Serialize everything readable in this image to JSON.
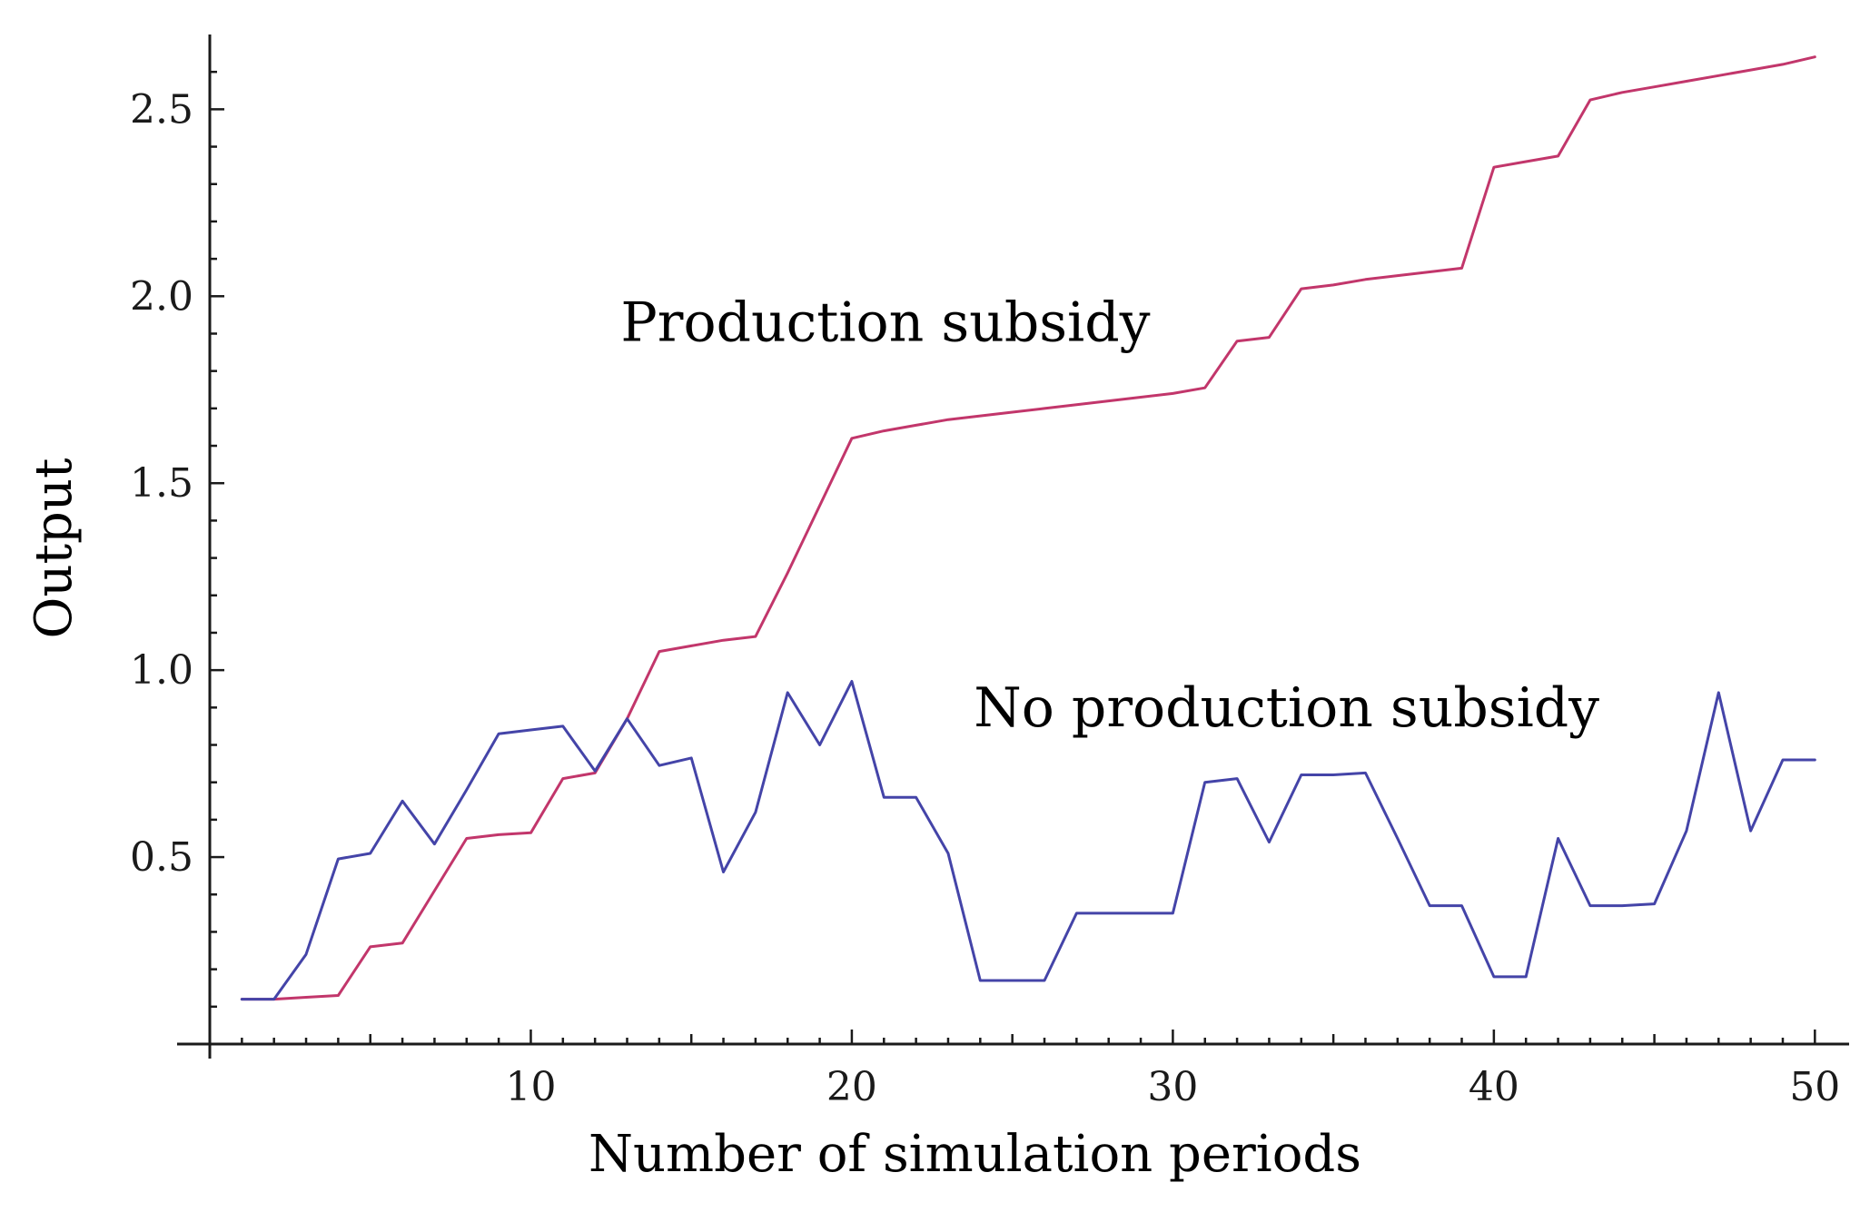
{
  "chart_data": {
    "type": "line",
    "title": "",
    "xlabel": "Number of simulation periods",
    "ylabel": "Output",
    "xlim": [
      0,
      50.5
    ],
    "ylim": [
      0,
      2.7
    ],
    "xticks": [
      10,
      20,
      30,
      40,
      50
    ],
    "xtick_labels": [
      "10",
      "20",
      "30",
      "40",
      "50"
    ],
    "yticks": [
      0.5,
      1.0,
      1.5,
      2.0,
      2.5
    ],
    "ytick_labels": [
      "0.5",
      "1.0",
      "1.5",
      "2.0",
      "2.5"
    ],
    "x": [
      1,
      2,
      3,
      4,
      5,
      6,
      7,
      8,
      9,
      10,
      11,
      12,
      13,
      14,
      15,
      16,
      17,
      18,
      19,
      20,
      21,
      22,
      23,
      24,
      25,
      26,
      27,
      28,
      29,
      30,
      31,
      32,
      33,
      34,
      35,
      36,
      37,
      38,
      39,
      40,
      41,
      42,
      43,
      44,
      45,
      46,
      47,
      48,
      49,
      50
    ],
    "series": [
      {
        "name": "Production subsidy",
        "color": "#c2366b",
        "values": [
          0.12,
          0.12,
          0.125,
          0.13,
          0.26,
          0.27,
          0.41,
          0.55,
          0.56,
          0.565,
          0.71,
          0.725,
          0.87,
          1.05,
          1.065,
          1.08,
          1.09,
          1.26,
          1.44,
          1.62,
          1.64,
          1.655,
          1.67,
          1.68,
          1.69,
          1.7,
          1.71,
          1.72,
          1.73,
          1.74,
          1.755,
          1.88,
          1.89,
          2.02,
          2.03,
          2.045,
          2.055,
          2.065,
          2.075,
          2.345,
          2.36,
          2.375,
          2.525,
          2.545,
          2.56,
          2.575,
          2.59,
          2.605,
          2.62,
          2.64
        ]
      },
      {
        "name": "No production subsidy",
        "color": "#4444a8",
        "values": [
          0.12,
          0.12,
          0.24,
          0.495,
          0.51,
          0.65,
          0.535,
          0.68,
          0.83,
          0.84,
          0.85,
          0.73,
          0.87,
          0.745,
          0.765,
          0.46,
          0.62,
          0.94,
          0.8,
          0.97,
          0.66,
          0.66,
          0.51,
          0.17,
          0.17,
          0.17,
          0.35,
          0.35,
          0.35,
          0.35,
          0.7,
          0.71,
          0.54,
          0.72,
          0.72,
          0.725,
          0.55,
          0.37,
          0.37,
          0.18,
          0.18,
          0.55,
          0.37,
          0.37,
          0.375,
          0.57,
          0.94,
          0.57,
          0.76,
          0.76
        ]
      }
    ],
    "annotations": [
      {
        "text": "Production subsidy",
        "x": 12.8,
        "y": 1.88
      },
      {
        "text": "No production subsidy",
        "x": 23.8,
        "y": 0.85
      }
    ],
    "grid": false,
    "legend": "none"
  }
}
